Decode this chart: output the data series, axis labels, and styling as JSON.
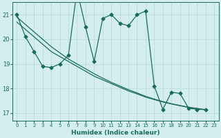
{
  "title": "",
  "xlabel": "Humidex (Indice chaleur)",
  "background_color": "#d4eeee",
  "grid_color": "#b8d8d8",
  "line_color": "#1a6b5a",
  "xlim": [
    -0.5,
    23.5
  ],
  "ylim": [
    16.7,
    21.5
  ],
  "yticks": [
    17,
    18,
    19,
    20,
    21
  ],
  "xticks": [
    0,
    1,
    2,
    3,
    4,
    5,
    6,
    7,
    8,
    9,
    10,
    11,
    12,
    13,
    14,
    15,
    16,
    17,
    18,
    19,
    20,
    21,
    22,
    23
  ],
  "series1_x": [
    0,
    1,
    2,
    3,
    4,
    5,
    6,
    7,
    8,
    9,
    10,
    11,
    12,
    13,
    14,
    15,
    16,
    17,
    18,
    19,
    20,
    21,
    22
  ],
  "series1_y": [
    21.0,
    20.1,
    19.5,
    18.9,
    18.85,
    19.0,
    19.35,
    22.0,
    20.5,
    19.1,
    20.85,
    21.0,
    20.65,
    20.55,
    21.0,
    21.15,
    18.1,
    17.15,
    17.85,
    17.8,
    17.2,
    17.15,
    17.15
  ],
  "series2_x": [
    0,
    1,
    2,
    3,
    4,
    5,
    6,
    7,
    8,
    9,
    10,
    11,
    12,
    13,
    14,
    15,
    16,
    17,
    18,
    19,
    20,
    21,
    22
  ],
  "series2_y": [
    20.7,
    20.4,
    20.1,
    19.8,
    19.5,
    19.3,
    19.1,
    18.9,
    18.7,
    18.5,
    18.35,
    18.2,
    18.05,
    17.9,
    17.78,
    17.65,
    17.55,
    17.45,
    17.37,
    17.3,
    17.23,
    17.18,
    17.13
  ],
  "series3_x": [
    0,
    1,
    2,
    3,
    4,
    5,
    6,
    7,
    8,
    9,
    10,
    11,
    12,
    13,
    14,
    15,
    16,
    17,
    18,
    19,
    20,
    21,
    22
  ],
  "series3_y": [
    20.9,
    20.6,
    20.3,
    20.0,
    19.7,
    19.45,
    19.2,
    19.0,
    18.8,
    18.6,
    18.42,
    18.25,
    18.1,
    17.95,
    17.82,
    17.68,
    17.57,
    17.47,
    17.38,
    17.31,
    17.24,
    17.19,
    17.14
  ]
}
